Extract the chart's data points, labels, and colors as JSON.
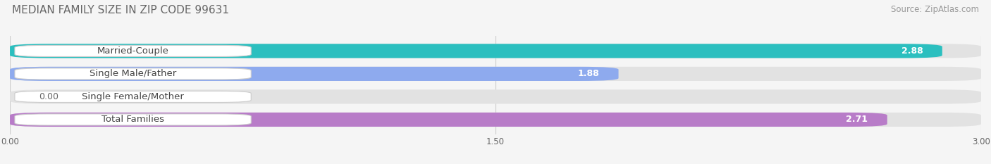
{
  "title": "MEDIAN FAMILY SIZE IN ZIP CODE 99631",
  "source": "Source: ZipAtlas.com",
  "categories": [
    "Married-Couple",
    "Single Male/Father",
    "Single Female/Mother",
    "Total Families"
  ],
  "values": [
    2.88,
    1.88,
    0.0,
    2.71
  ],
  "bar_colors": [
    "#2bbfbf",
    "#8eaaee",
    "#f4a0b8",
    "#b87cc8"
  ],
  "xlim": [
    0,
    3.0
  ],
  "xticks": [
    0.0,
    1.5,
    3.0
  ],
  "xtick_labels": [
    "0.00",
    "1.50",
    "3.00"
  ],
  "bar_height": 0.62,
  "background_color": "#f5f5f5",
  "bar_bg_color": "#e2e2e2",
  "title_fontsize": 11,
  "source_fontsize": 8.5,
  "label_fontsize": 9.5,
  "value_fontsize": 9
}
